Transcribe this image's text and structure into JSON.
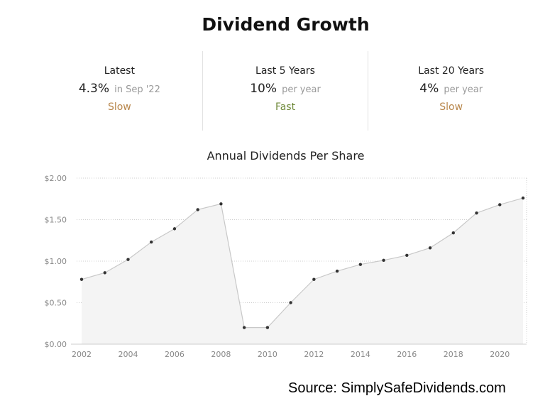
{
  "header": {
    "title": "Dividend Growth"
  },
  "stats": [
    {
      "label": "Latest",
      "value": "4.3%",
      "note": "in Sep '22",
      "rating": "Slow",
      "rating_color": "#b8864b"
    },
    {
      "label": "Last 5 Years",
      "value": "10%",
      "note": "per year",
      "rating": "Fast",
      "rating_color": "#6f8a3a"
    },
    {
      "label": "Last 20 Years",
      "value": "4%",
      "note": "per year",
      "rating": "Slow",
      "rating_color": "#b8864b"
    }
  ],
  "chart_data": {
    "type": "area",
    "title": "Annual Dividends Per Share",
    "xlabel": "",
    "ylabel": "",
    "x": [
      2002,
      2003,
      2004,
      2005,
      2006,
      2007,
      2008,
      2009,
      2010,
      2011,
      2012,
      2013,
      2014,
      2015,
      2016,
      2017,
      2018,
      2019,
      2020,
      2021
    ],
    "series": [
      {
        "values": [
          0.78,
          0.86,
          1.02,
          1.23,
          1.39,
          1.62,
          1.69,
          0.2,
          0.2,
          0.5,
          0.78,
          0.88,
          0.96,
          1.01,
          1.07,
          1.16,
          1.34,
          1.58,
          1.68,
          1.76
        ]
      }
    ],
    "xticks": [
      "2002",
      "2004",
      "2006",
      "2008",
      "2010",
      "2012",
      "2014",
      "2016",
      "2018",
      "2020"
    ],
    "yticks": [
      "$0.00",
      "$0.50",
      "$1.00",
      "$1.50",
      "$2.00"
    ],
    "ylim": [
      0,
      2
    ],
    "xlim": [
      2002,
      2021
    ],
    "grid": true,
    "line_color": "#c8c8c8",
    "fill_color": "#f4f4f4",
    "marker_color": "#333333"
  },
  "footer": {
    "source": "Source: SimplySafeDividends.com"
  }
}
